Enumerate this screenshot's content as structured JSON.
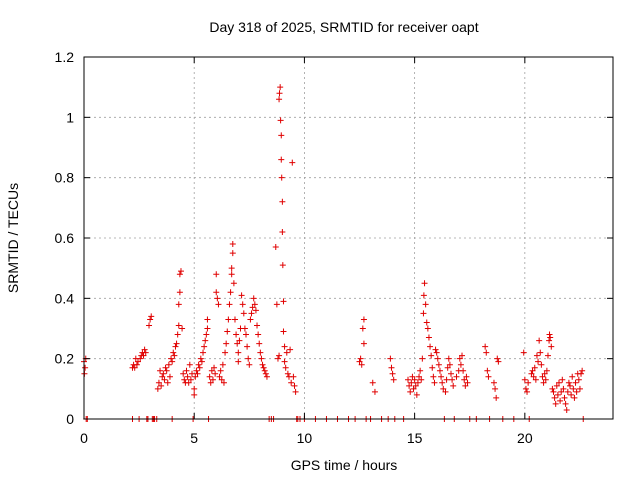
{
  "chart_data": {
    "type": "scatter",
    "title": "Day 318 of 2025, SRMTID for receiver oapt",
    "xlabel": "GPS time / hours",
    "ylabel": "SRMTID / TECUs",
    "xlim": [
      0,
      24
    ],
    "ylim": [
      0,
      1.2
    ],
    "xticks": [
      0,
      5,
      10,
      15,
      20
    ],
    "xtick_labels": [
      "0",
      "5",
      "10",
      "15",
      "20"
    ],
    "yticks": [
      0,
      0.2,
      0.4,
      0.6,
      0.8,
      1.0,
      1.2
    ],
    "ytick_labels": [
      "0",
      "0.2",
      "0.4",
      "0.6",
      "0.8",
      "1",
      "1.2"
    ],
    "grid": true,
    "marker": "+",
    "color": "#e00000",
    "series": [
      {
        "name": "SRMTID",
        "points": [
          [
            0.0,
            0.19
          ],
          [
            0.02,
            0.15
          ],
          [
            0.05,
            0.17
          ],
          [
            0.08,
            0.2
          ],
          [
            0.1,
            0.0
          ],
          [
            0.15,
            0.0
          ],
          [
            2.2,
            0.0
          ],
          [
            2.2,
            0.17
          ],
          [
            2.25,
            0.18
          ],
          [
            2.3,
            0.17
          ],
          [
            2.35,
            0.2
          ],
          [
            2.4,
            0.18
          ],
          [
            2.45,
            0.19
          ],
          [
            2.5,
            0.0
          ],
          [
            2.55,
            0.2
          ],
          [
            2.6,
            0.21
          ],
          [
            2.65,
            0.22
          ],
          [
            2.7,
            0.21
          ],
          [
            2.75,
            0.23
          ],
          [
            2.8,
            0.22
          ],
          [
            2.85,
            0.0
          ],
          [
            2.9,
            0.0
          ],
          [
            2.95,
            0.31
          ],
          [
            3.0,
            0.33
          ],
          [
            3.05,
            0.34
          ],
          [
            3.1,
            0.0
          ],
          [
            3.15,
            0.0
          ],
          [
            3.2,
            0.0
          ],
          [
            3.3,
            0.0
          ],
          [
            3.35,
            0.1
          ],
          [
            3.4,
            0.12
          ],
          [
            3.45,
            0.16
          ],
          [
            3.5,
            0.11
          ],
          [
            3.55,
            0.14
          ],
          [
            3.6,
            0.15
          ],
          [
            3.65,
            0.13
          ],
          [
            3.7,
            0.17
          ],
          [
            3.75,
            0.16
          ],
          [
            3.8,
            0.12
          ],
          [
            3.85,
            0.18
          ],
          [
            3.9,
            0.14
          ],
          [
            3.95,
            0.2
          ],
          [
            4.0,
            0.19
          ],
          [
            4.0,
            0.0
          ],
          [
            4.05,
            0.22
          ],
          [
            4.1,
            0.21
          ],
          [
            4.15,
            0.24
          ],
          [
            4.2,
            0.25
          ],
          [
            4.25,
            0.28
          ],
          [
            4.3,
            0.31
          ],
          [
            4.3,
            0.38
          ],
          [
            4.35,
            0.42
          ],
          [
            4.35,
            0.48
          ],
          [
            4.4,
            0.49
          ],
          [
            4.45,
            0.3
          ],
          [
            4.5,
            0.15
          ],
          [
            4.55,
            0.13
          ],
          [
            4.6,
            0.12
          ],
          [
            4.65,
            0.16
          ],
          [
            4.7,
            0.14
          ],
          [
            4.75,
            0.12
          ],
          [
            4.8,
            0.18
          ],
          [
            4.85,
            0.13
          ],
          [
            4.9,
            0.15
          ],
          [
            4.95,
            0.0
          ],
          [
            5.0,
            0.08
          ],
          [
            5.0,
            0.1
          ],
          [
            5.05,
            0.14
          ],
          [
            5.1,
            0.16
          ],
          [
            5.15,
            0.15
          ],
          [
            5.2,
            0.18
          ],
          [
            5.25,
            0.17
          ],
          [
            5.3,
            0.2
          ],
          [
            5.35,
            0.19
          ],
          [
            5.4,
            0.22
          ],
          [
            5.45,
            0.24
          ],
          [
            5.5,
            0.26
          ],
          [
            5.55,
            0.28
          ],
          [
            5.6,
            0.3
          ],
          [
            5.6,
            0.33
          ],
          [
            5.65,
            0.0
          ],
          [
            5.7,
            0.14
          ],
          [
            5.75,
            0.12
          ],
          [
            5.8,
            0.16
          ],
          [
            5.85,
            0.13
          ],
          [
            5.9,
            0.17
          ],
          [
            5.95,
            0.15
          ],
          [
            6.0,
            0.42
          ],
          [
            6.0,
            0.48
          ],
          [
            6.05,
            0.4
          ],
          [
            6.1,
            0.38
          ],
          [
            6.15,
            0.14
          ],
          [
            6.2,
            0.16
          ],
          [
            6.25,
            0.13
          ],
          [
            6.3,
            0.18
          ],
          [
            6.35,
            0.12
          ],
          [
            6.4,
            0.22
          ],
          [
            6.45,
            0.25
          ],
          [
            6.5,
            0.29
          ],
          [
            6.55,
            0.33
          ],
          [
            6.6,
            0.38
          ],
          [
            6.65,
            0.42
          ],
          [
            6.7,
            0.48
          ],
          [
            6.7,
            0.5
          ],
          [
            6.75,
            0.55
          ],
          [
            6.75,
            0.58
          ],
          [
            6.8,
            0.45
          ],
          [
            6.85,
            0.33
          ],
          [
            6.9,
            0.28
          ],
          [
            6.95,
            0.25
          ],
          [
            7.0,
            0.22
          ],
          [
            7.0,
            0.19
          ],
          [
            7.05,
            0.26
          ],
          [
            7.1,
            0.3
          ],
          [
            7.15,
            0.41
          ],
          [
            7.2,
            0.38
          ],
          [
            7.25,
            0.35
          ],
          [
            7.3,
            0.3
          ],
          [
            7.35,
            0.28
          ],
          [
            7.4,
            0.24
          ],
          [
            7.45,
            0.2
          ],
          [
            7.5,
            0.18
          ],
          [
            7.55,
            0.33
          ],
          [
            7.6,
            0.35
          ],
          [
            7.65,
            0.37
          ],
          [
            7.7,
            0.4
          ],
          [
            7.75,
            0.38
          ],
          [
            7.8,
            0.36
          ],
          [
            7.85,
            0.31
          ],
          [
            7.9,
            0.28
          ],
          [
            7.95,
            0.25
          ],
          [
            8.0,
            0.22
          ],
          [
            8.05,
            0.2
          ],
          [
            8.1,
            0.18
          ],
          [
            8.15,
            0.17
          ],
          [
            8.2,
            0.16
          ],
          [
            8.25,
            0.15
          ],
          [
            8.3,
            0.14
          ],
          [
            8.4,
            0.0
          ],
          [
            8.5,
            0.0
          ],
          [
            8.6,
            0.0
          ],
          [
            8.7,
            0.57
          ],
          [
            8.75,
            0.38
          ],
          [
            8.8,
            0.2
          ],
          [
            8.85,
            0.21
          ],
          [
            8.85,
            1.06
          ],
          [
            8.87,
            1.08
          ],
          [
            8.9,
            1.1
          ],
          [
            8.92,
            0.99
          ],
          [
            8.95,
            0.94
          ],
          [
            8.95,
            0.86
          ],
          [
            8.97,
            0.8
          ],
          [
            9.0,
            0.72
          ],
          [
            9.0,
            0.62
          ],
          [
            9.02,
            0.51
          ],
          [
            9.05,
            0.39
          ],
          [
            9.05,
            0.29
          ],
          [
            9.1,
            0.24
          ],
          [
            9.1,
            0.19
          ],
          [
            9.15,
            0.17
          ],
          [
            9.2,
            0.22
          ],
          [
            9.25,
            0.15
          ],
          [
            9.3,
            0.14
          ],
          [
            9.35,
            0.23
          ],
          [
            9.4,
            0.12
          ],
          [
            9.45,
            0.85
          ],
          [
            9.5,
            0.14
          ],
          [
            9.55,
            0.11
          ],
          [
            9.6,
            0.09
          ],
          [
            9.65,
            0.0
          ],
          [
            9.7,
            0.0
          ],
          [
            9.8,
            0.0
          ],
          [
            10.0,
            0.0
          ],
          [
            10.5,
            0.0
          ],
          [
            11.0,
            0.0
          ],
          [
            11.5,
            0.0
          ],
          [
            12.0,
            0.0
          ],
          [
            12.3,
            0.0
          ],
          [
            12.5,
            0.19
          ],
          [
            12.55,
            0.2
          ],
          [
            12.6,
            0.18
          ],
          [
            12.65,
            0.3
          ],
          [
            12.7,
            0.33
          ],
          [
            12.7,
            0.25
          ],
          [
            12.8,
            0.0
          ],
          [
            13.0,
            0.0
          ],
          [
            13.1,
            0.12
          ],
          [
            13.2,
            0.09
          ],
          [
            13.5,
            0.0
          ],
          [
            13.8,
            0.0
          ],
          [
            13.9,
            0.2
          ],
          [
            13.95,
            0.17
          ],
          [
            14.0,
            0.15
          ],
          [
            14.05,
            0.13
          ],
          [
            14.1,
            0.0
          ],
          [
            14.5,
            0.0
          ],
          [
            14.7,
            0.13
          ],
          [
            14.75,
            0.11
          ],
          [
            14.8,
            0.09
          ],
          [
            14.85,
            0.12
          ],
          [
            14.9,
            0.14
          ],
          [
            14.95,
            0.1
          ],
          [
            15.0,
            0.13
          ],
          [
            15.05,
            0.11
          ],
          [
            15.1,
            0.08
          ],
          [
            15.15,
            0.12
          ],
          [
            15.2,
            0.14
          ],
          [
            15.25,
            0.16
          ],
          [
            15.3,
            0.13
          ],
          [
            15.35,
            0.2
          ],
          [
            15.4,
            0.35
          ],
          [
            15.42,
            0.41
          ],
          [
            15.45,
            0.45
          ],
          [
            15.5,
            0.38
          ],
          [
            15.55,
            0.32
          ],
          [
            15.6,
            0.3
          ],
          [
            15.65,
            0.27
          ],
          [
            15.7,
            0.24
          ],
          [
            15.75,
            0.21
          ],
          [
            15.8,
            0.17
          ],
          [
            15.85,
            0.14
          ],
          [
            15.9,
            0.12
          ],
          [
            15.95,
            0.23
          ],
          [
            16.0,
            0.22
          ],
          [
            16.05,
            0.2
          ],
          [
            16.1,
            0.18
          ],
          [
            16.15,
            0.16
          ],
          [
            16.2,
            0.14
          ],
          [
            16.25,
            0.12
          ],
          [
            16.3,
            0.1
          ],
          [
            16.35,
            0.0
          ],
          [
            16.4,
            0.09
          ],
          [
            16.45,
            0.13
          ],
          [
            16.5,
            0.17
          ],
          [
            16.55,
            0.2
          ],
          [
            16.6,
            0.18
          ],
          [
            16.65,
            0.15
          ],
          [
            16.7,
            0.13
          ],
          [
            16.75,
            0.11
          ],
          [
            16.8,
            0.0
          ],
          [
            16.9,
            0.14
          ],
          [
            17.0,
            0.16
          ],
          [
            17.05,
            0.2
          ],
          [
            17.1,
            0.18
          ],
          [
            17.15,
            0.21
          ],
          [
            17.2,
            0.16
          ],
          [
            17.25,
            0.13
          ],
          [
            17.3,
            0.11
          ],
          [
            17.35,
            0.14
          ],
          [
            17.4,
            0.12
          ],
          [
            17.5,
            0.0
          ],
          [
            17.8,
            0.0
          ],
          [
            18.2,
            0.24
          ],
          [
            18.25,
            0.22
          ],
          [
            18.3,
            0.16
          ],
          [
            18.35,
            0.14
          ],
          [
            18.4,
            0.0
          ],
          [
            18.6,
            0.12
          ],
          [
            18.65,
            0.1
          ],
          [
            18.7,
            0.07
          ],
          [
            18.75,
            0.2
          ],
          [
            18.8,
            0.19
          ],
          [
            19.0,
            0.0
          ],
          [
            19.5,
            0.0
          ],
          [
            19.95,
            0.22
          ],
          [
            20.0,
            0.13
          ],
          [
            20.05,
            0.1
          ],
          [
            20.1,
            0.09
          ],
          [
            20.15,
            0.12
          ],
          [
            20.2,
            0.0
          ],
          [
            20.3,
            0.15
          ],
          [
            20.35,
            0.16
          ],
          [
            20.4,
            0.14
          ],
          [
            20.45,
            0.17
          ],
          [
            20.5,
            0.13
          ],
          [
            20.55,
            0.21
          ],
          [
            20.6,
            0.19
          ],
          [
            20.65,
            0.26
          ],
          [
            20.7,
            0.22
          ],
          [
            20.75,
            0.18
          ],
          [
            20.8,
            0.14
          ],
          [
            20.85,
            0.12
          ],
          [
            20.9,
            0.15
          ],
          [
            20.95,
            0.13
          ],
          [
            21.0,
            0.16
          ],
          [
            21.05,
            0.21
          ],
          [
            21.1,
            0.26
          ],
          [
            21.12,
            0.28
          ],
          [
            21.15,
            0.27
          ],
          [
            21.2,
            0.24
          ],
          [
            21.25,
            0.1
          ],
          [
            21.3,
            0.09
          ],
          [
            21.35,
            0.07
          ],
          [
            21.4,
            0.05
          ],
          [
            21.45,
            0.11
          ],
          [
            21.5,
            0.08
          ],
          [
            21.55,
            0.12
          ],
          [
            21.6,
            0.06
          ],
          [
            21.65,
            0.09
          ],
          [
            21.7,
            0.13
          ],
          [
            21.75,
            0.1
          ],
          [
            21.8,
            0.07
          ],
          [
            21.85,
            0.05
          ],
          [
            21.9,
            0.03
          ],
          [
            21.95,
            0.09
          ],
          [
            22.0,
            0.12
          ],
          [
            22.05,
            0.11
          ],
          [
            22.1,
            0.08
          ],
          [
            22.15,
            0.14
          ],
          [
            22.2,
            0.1
          ],
          [
            22.25,
            0.07
          ],
          [
            22.3,
            0.12
          ],
          [
            22.35,
            0.09
          ],
          [
            22.4,
            0.15
          ],
          [
            22.45,
            0.13
          ],
          [
            22.5,
            0.1
          ],
          [
            22.55,
            0.15
          ],
          [
            22.6,
            0.16
          ],
          [
            22.65,
            0.0
          ]
        ]
      }
    ]
  }
}
